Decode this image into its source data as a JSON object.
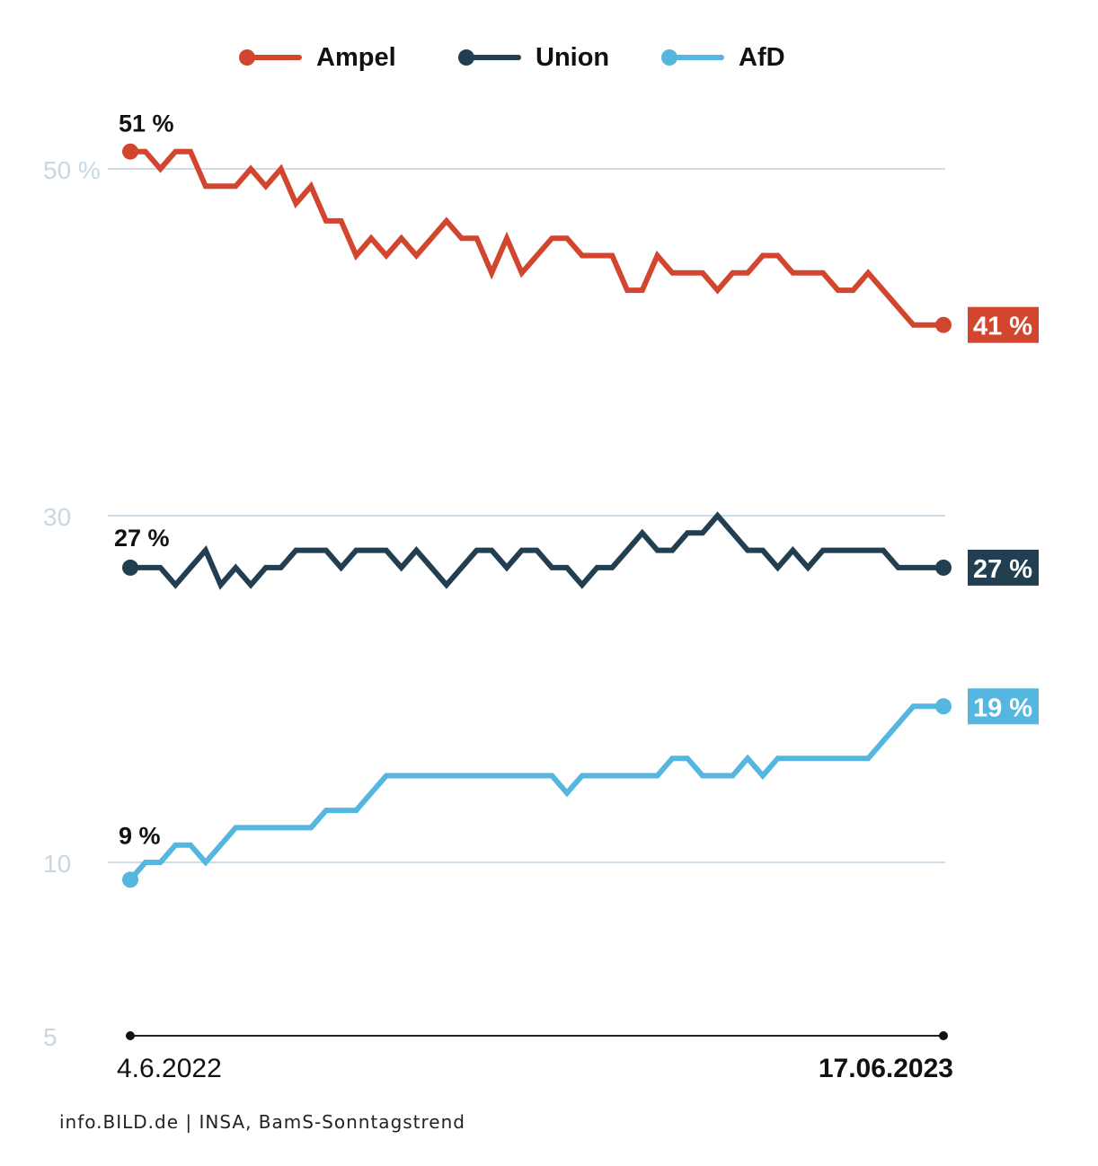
{
  "legend": [
    {
      "name": "Ampel",
      "color": "#D2462F"
    },
    {
      "name": "Union",
      "color": "#213F50"
    },
    {
      "name": "AfD",
      "color": "#55B7E0"
    }
  ],
  "source": "info.BILD.de | INSA, BamS-Sonntagstrend",
  "chart_data": {
    "type": "line",
    "title": "",
    "xlabel": "",
    "ylabel": "",
    "x_start_label": "4.6.2022",
    "x_end_label": "17.06.2023",
    "y_ticks": [
      {
        "value": 50,
        "label": "50 %"
      },
      {
        "value": 30,
        "label": "30"
      },
      {
        "value": 10,
        "label": "10"
      },
      {
        "value": 5,
        "label": "5"
      }
    ],
    "grid": true,
    "legend_position": "top-center",
    "series": [
      {
        "name": "Ampel",
        "color": "#D2462F",
        "start_label": "51 %",
        "end_label": "41 %",
        "values": [
          51,
          51,
          50,
          51,
          51,
          49,
          49,
          49,
          50,
          49,
          50,
          48,
          49,
          47,
          47,
          45,
          46,
          45,
          46,
          45,
          46,
          47,
          46,
          46,
          44,
          46,
          44,
          45,
          46,
          46,
          45,
          45,
          45,
          43,
          43,
          45,
          44,
          44,
          44,
          43,
          44,
          44,
          45,
          45,
          44,
          44,
          44,
          43,
          43,
          44,
          43,
          42,
          41,
          41,
          41
        ]
      },
      {
        "name": "Union",
        "color": "#213F50",
        "start_label": "27 %",
        "end_label": "27 %",
        "values": [
          27,
          27,
          27,
          26,
          27,
          28,
          26,
          27,
          26,
          27,
          27,
          28,
          28,
          28,
          27,
          28,
          28,
          28,
          27,
          28,
          27,
          26,
          27,
          28,
          28,
          27,
          28,
          28,
          27,
          27,
          26,
          27,
          27,
          28,
          29,
          28,
          28,
          29,
          29,
          30,
          29,
          28,
          28,
          27,
          28,
          27,
          28,
          28,
          28,
          28,
          28,
          27,
          27,
          27,
          27
        ]
      },
      {
        "name": "AfD",
        "color": "#55B7E0",
        "start_label": "9 %",
        "end_label": "19 %",
        "values": [
          9,
          10,
          10,
          11,
          11,
          10,
          11,
          12,
          12,
          12,
          12,
          12,
          12,
          13,
          13,
          13,
          14,
          15,
          15,
          15,
          15,
          15,
          15,
          15,
          15,
          15,
          15,
          15,
          15,
          14,
          15,
          15,
          15,
          15,
          15,
          15,
          16,
          16,
          15,
          15,
          15,
          16,
          15,
          16,
          16,
          16,
          16,
          16,
          16,
          16,
          17,
          18,
          19,
          19,
          19
        ]
      }
    ]
  }
}
